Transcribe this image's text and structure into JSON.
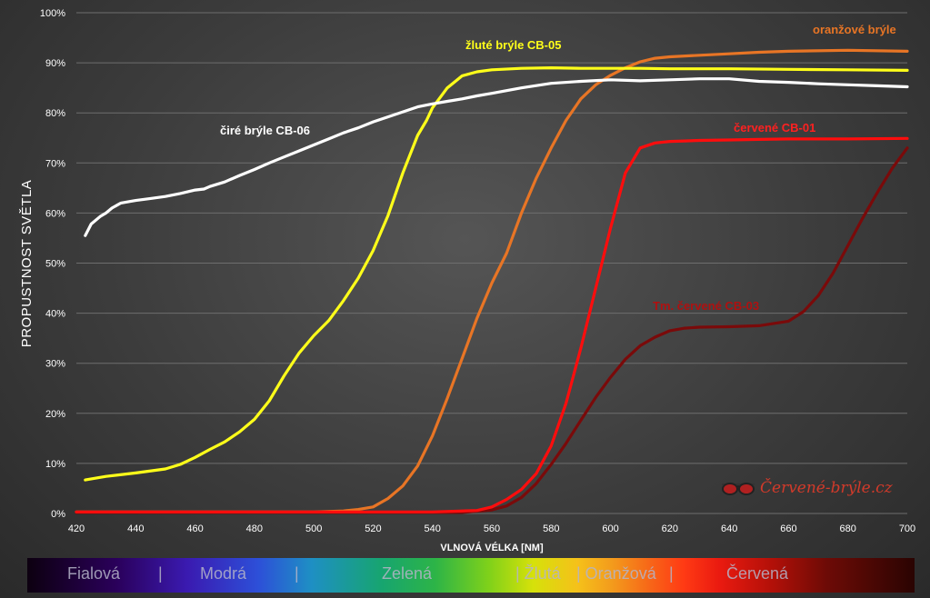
{
  "colors": {
    "white": "#ffffff",
    "yellow": "#ffff1a",
    "orange": "#e87525",
    "red": "#ff0d0d",
    "darkred": "#7a0a0a",
    "grid": "#6e6e6e"
  },
  "chart_data": {
    "type": "line",
    "title": "",
    "xlabel": "VLNOVÁ VÉLKA [NM]",
    "ylabel": "PROPUSTNOST SVĚTLA",
    "xlim": [
      420,
      700
    ],
    "ylim": [
      0,
      100
    ],
    "x_ticks": [
      "420",
      "440",
      "460",
      "480",
      "500",
      "520",
      "540",
      "560",
      "580",
      "600",
      "620",
      "640",
      "660",
      "680",
      "700"
    ],
    "y_ticks": [
      "0%",
      "10%",
      "20%",
      "30%",
      "40%",
      "50%",
      "60%",
      "70%",
      "80%",
      "90%",
      "100%"
    ],
    "grid": true,
    "series": [
      {
        "name": "čiré brýle CB-06",
        "color": "white",
        "x": [
          423,
          425,
          428,
          430,
          432,
          435,
          438,
          440,
          445,
          450,
          455,
          460,
          463,
          465,
          470,
          475,
          480,
          485,
          490,
          495,
          500,
          505,
          510,
          515,
          520,
          525,
          530,
          535,
          540,
          545,
          550,
          555,
          560,
          570,
          580,
          590,
          600,
          610,
          620,
          630,
          640,
          650,
          660,
          670,
          680,
          690,
          700
        ],
        "y": [
          55.5,
          57.8,
          59.3,
          60,
          61,
          62,
          62.3,
          62.5,
          62.9,
          63.3,
          63.9,
          64.6,
          64.8,
          65.3,
          66.2,
          67.5,
          68.7,
          70,
          71.2,
          72.4,
          73.6,
          74.8,
          76,
          77,
          78.2,
          79.2,
          80.2,
          81.2,
          81.8,
          82.3,
          82.8,
          83.4,
          83.9,
          85,
          85.9,
          86.3,
          86.6,
          86.4,
          86.6,
          86.8,
          86.8,
          86.3,
          86.1,
          85.8,
          85.6,
          85.4,
          85.2
        ]
      },
      {
        "name": "žluté brýle CB-05",
        "color": "yellow",
        "x": [
          423,
          430,
          440,
          450,
          455,
          460,
          465,
          470,
          475,
          480,
          485,
          490,
          495,
          500,
          505,
          510,
          515,
          520,
          525,
          530,
          535,
          538,
          540,
          545,
          550,
          555,
          560,
          570,
          580,
          590,
          600,
          610,
          620,
          640,
          660,
          680,
          700
        ],
        "y": [
          6.7,
          7.4,
          8.1,
          8.9,
          9.8,
          11.2,
          12.8,
          14.3,
          16.3,
          18.8,
          22.5,
          27.5,
          32,
          35.5,
          38.5,
          42.5,
          47,
          52.5,
          59.5,
          68,
          75.5,
          78.5,
          81,
          85,
          87.4,
          88.2,
          88.6,
          88.9,
          89,
          88.9,
          88.9,
          88.9,
          88.8,
          88.8,
          88.7,
          88.6,
          88.5
        ]
      },
      {
        "name": "oranžové brýle",
        "color": "orange",
        "x": [
          420,
          500,
          510,
          515,
          520,
          525,
          530,
          535,
          540,
          545,
          550,
          555,
          560,
          565,
          570,
          575,
          580,
          585,
          590,
          595,
          600,
          605,
          610,
          615,
          620,
          630,
          640,
          650,
          660,
          680,
          700
        ],
        "y": [
          0.3,
          0.3,
          0.5,
          0.8,
          1.3,
          3,
          5.5,
          9.5,
          15.5,
          23,
          31,
          39,
          46,
          52,
          60,
          67,
          73,
          78.5,
          82.8,
          85.6,
          87.5,
          89,
          90.2,
          90.9,
          91.2,
          91.5,
          91.8,
          92.1,
          92.3,
          92.5,
          92.3
        ]
      },
      {
        "name": "červené CB-01",
        "color": "red",
        "x": [
          420,
          540,
          555,
          560,
          565,
          570,
          575,
          580,
          585,
          590,
          595,
          600,
          605,
          610,
          615,
          620,
          625,
          630,
          640,
          650,
          660,
          680,
          700
        ],
        "y": [
          0.3,
          0.3,
          0.6,
          1.3,
          2.8,
          4.8,
          8,
          13.5,
          22,
          33,
          45,
          57,
          68,
          73,
          74,
          74.3,
          74.4,
          74.5,
          74.6,
          74.7,
          74.8,
          74.8,
          74.9
        ]
      },
      {
        "name": "Tm. červené CB-03",
        "color": "darkred",
        "x": [
          420,
          550,
          560,
          565,
          570,
          575,
          580,
          585,
          590,
          595,
          600,
          605,
          610,
          615,
          620,
          625,
          630,
          640,
          650,
          660,
          665,
          670,
          675,
          680,
          685,
          690,
          695,
          700
        ],
        "y": [
          0.2,
          0.2,
          0.7,
          1.5,
          3.2,
          6,
          9.8,
          14,
          18.6,
          23.2,
          27.2,
          30.8,
          33.5,
          35.2,
          36.5,
          37,
          37.2,
          37.3,
          37.5,
          38.4,
          40.3,
          43.5,
          48,
          53.5,
          59,
          64.2,
          69,
          73
        ]
      }
    ],
    "labels": [
      {
        "text": "čiré brýle CB-06",
        "series": "white"
      },
      {
        "text": "žluté brýle CB-05",
        "series": "yellow"
      },
      {
        "text": "oranžové brýle",
        "series": "orange"
      },
      {
        "text": "červené CB-01",
        "series": "red"
      },
      {
        "text": "Tm. červené CB-03",
        "series": "darkred"
      }
    ]
  },
  "spectrum_bar": {
    "bands": [
      "Fialová",
      "|",
      "Modrá",
      "|",
      "Zelená",
      "| Žlutá",
      "| Oranžová",
      "|",
      "Červená"
    ]
  },
  "watermark": {
    "text": "Červené-brýle.cz",
    "icon": "glasses-icon"
  }
}
